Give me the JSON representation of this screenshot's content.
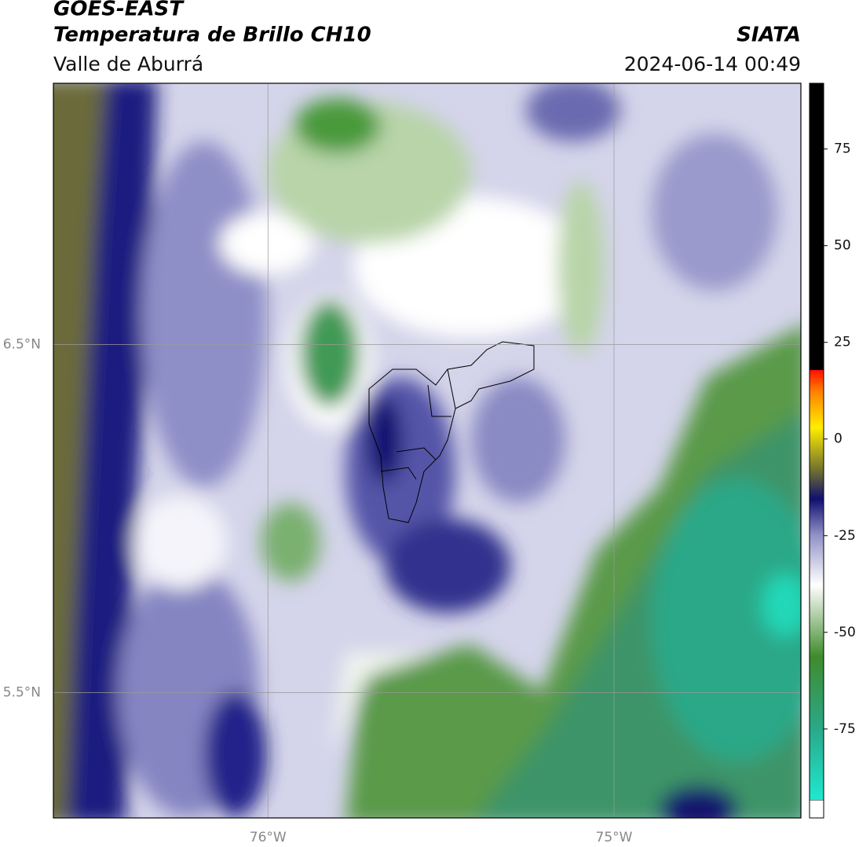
{
  "chart_data": {
    "type": "map",
    "title": "GOES-EAST",
    "subtitle": "Temperatura de Brillo CH10",
    "region": "Valle de Aburrá",
    "source": "SIATA",
    "datetime": "2024-06-14 00:49",
    "xlim": [
      -76.62,
      -74.46
    ],
    "ylim": [
      5.14,
      7.25
    ],
    "xticks": [
      {
        "value": -76,
        "label": "76°W"
      },
      {
        "value": -75,
        "label": "75°W"
      }
    ],
    "yticks": [
      {
        "value": 6.5,
        "label": "6.5°N"
      },
      {
        "value": 5.5,
        "label": "5.5°N"
      }
    ],
    "grid": true,
    "colorbar": {
      "lim": [
        -98,
        92
      ],
      "ticks": [
        75,
        50,
        25,
        0,
        -25,
        -50,
        -75
      ]
    }
  }
}
